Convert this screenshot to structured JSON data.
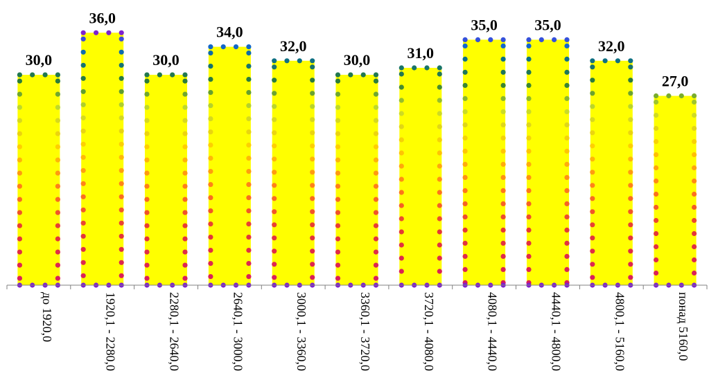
{
  "chart_data": {
    "type": "bar",
    "categories": [
      "до 1920,0",
      "1920,1 - 2280,0",
      "2280,1 - 2640,0",
      "2640,1 - 3000,0",
      "3000,1 - 3360,0",
      "3360,1 - 3720,0",
      "3720,1 - 4080,0",
      "4080,1 - 4440,0",
      "4440,1 - 4800,0",
      "4800,1 - 5160,0",
      "понад 5160,0"
    ],
    "values": [
      30.0,
      36.0,
      30.0,
      34.0,
      32.0,
      30.0,
      31.0,
      35.0,
      35.0,
      32.0,
      27.0
    ],
    "value_labels": [
      "30,0",
      "36,0",
      "30,0",
      "34,0",
      "32,0",
      "30,0",
      "31,0",
      "35,0",
      "35,0",
      "32,0",
      "27,0"
    ],
    "ylim": [
      0,
      40
    ],
    "grid": false,
    "legend": "none",
    "colors": {
      "bar_fill": "#ffff00",
      "axis": "#808080",
      "border_gradient_bottom": "#d81b60",
      "border_gradient_mid": "#ffd000",
      "border_gradient_upper": "#2e7d32",
      "border_gradient_top": "#7e22ce"
    }
  }
}
